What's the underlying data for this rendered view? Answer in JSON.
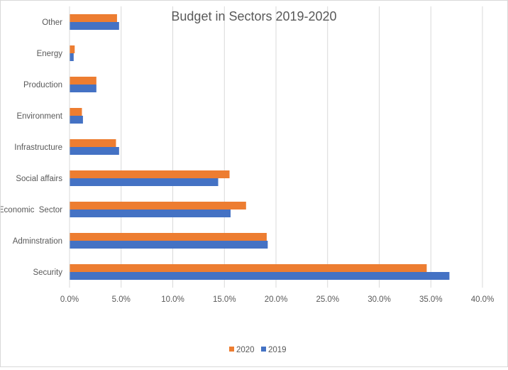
{
  "chart_data": {
    "type": "bar",
    "orientation": "horizontal",
    "title": "Budget in Sectors 2019-2020",
    "xlabel": "",
    "ylabel": "",
    "categories": [
      "Security",
      "Adminstration",
      "Economic  Sector",
      "Social affairs",
      "Infrastructure",
      "Environment",
      "Production",
      "Energy",
      "Other"
    ],
    "series": [
      {
        "name": "2020",
        "color": "#ED7D31",
        "values": [
          34.6,
          19.1,
          17.1,
          15.5,
          4.5,
          1.2,
          2.6,
          0.5,
          4.6
        ]
      },
      {
        "name": "2019",
        "color": "#4472C4",
        "values": [
          36.8,
          19.2,
          15.6,
          14.4,
          4.8,
          1.3,
          2.6,
          0.4,
          4.8
        ]
      }
    ],
    "xlim": [
      0,
      40
    ],
    "x_ticks": [
      "0.0%",
      "5.0%",
      "10.0%",
      "15.0%",
      "20.0%",
      "25.0%",
      "30.0%",
      "35.0%",
      "40.0%"
    ],
    "grid": true,
    "legend_position": "bottom"
  }
}
